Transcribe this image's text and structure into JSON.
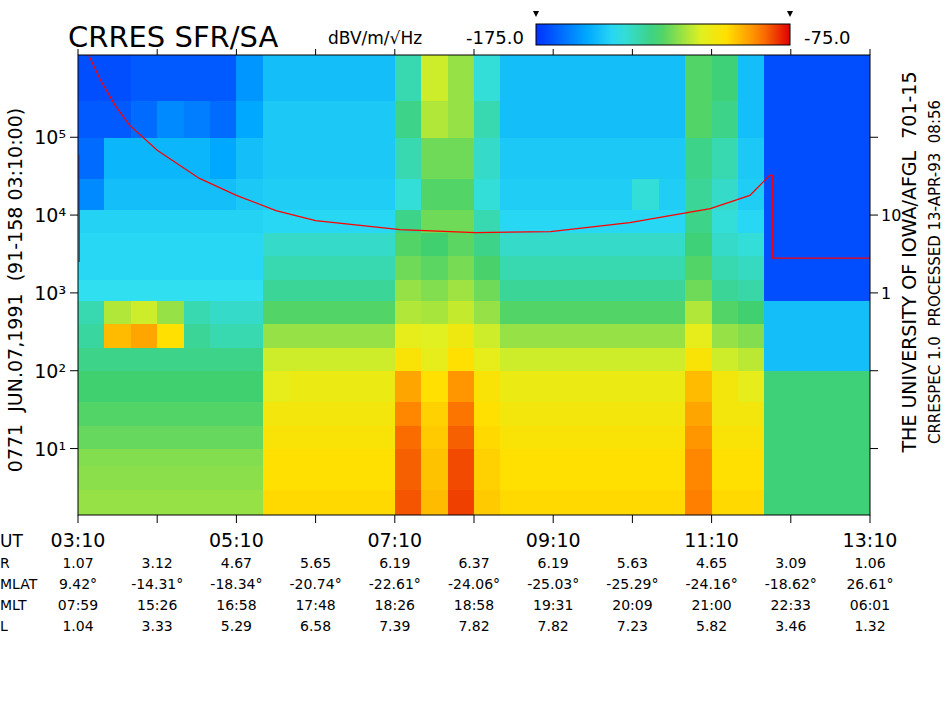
{
  "chart_data": {
    "type": "heatmap",
    "title": "CRRES SFR/SA",
    "left_label": "0771  JUN.07,1991  (91-158 03:10:00)",
    "right_labels": [
      "THE UNIVERSITY OF IOWA/AFGL  701-15",
      "CRRESPEC 1.0  PROCESSED 13-APR-93  08:56"
    ],
    "x_label": "UT",
    "log": "y",
    "xlim": [
      190,
      790
    ],
    "xticks": [
      {
        "value": 190,
        "label": "03:10"
      },
      {
        "value": 250,
        "label": null
      },
      {
        "value": 310,
        "label": "05:10"
      },
      {
        "value": 370,
        "label": null
      },
      {
        "value": 430,
        "label": "07:10"
      },
      {
        "value": 490,
        "label": null
      },
      {
        "value": 550,
        "label": "09:10"
      },
      {
        "value": 610,
        "label": null
      },
      {
        "value": 670,
        "label": "11:10"
      },
      {
        "value": 730,
        "label": null
      },
      {
        "value": 790,
        "label": "13:10"
      }
    ],
    "ylim": [
      1.4,
      1140000
    ],
    "yticks": [
      {
        "value": 10,
        "label": "10¹"
      },
      {
        "value": 100,
        "label": "10²"
      },
      {
        "value": 1000,
        "label": "10³"
      },
      {
        "value": 10000,
        "label": "10⁴"
      },
      {
        "value": 100000,
        "label": "10⁵"
      }
    ],
    "y2lim": [
      0.0014,
      1140
    ],
    "y2ticks": [
      {
        "value": 0.01,
        "label": null
      },
      {
        "value": 0.1,
        "label": null
      },
      1,
      10,
      {
        "value": 100,
        "label": null
      }
    ],
    "colorbar": {
      "label": "dBV/m/√Hz",
      "range": [
        -175,
        -75
      ],
      "ticks": [
        {
          "value": -175,
          "label": "-175.0"
        },
        {
          "value": -75,
          "label": "-75.0"
        }
      ]
    },
    "x_edges": [
      190,
      210,
      230,
      250,
      270,
      290,
      310,
      330,
      350,
      370,
      390,
      410,
      430,
      450,
      470,
      490,
      510,
      530,
      550,
      570,
      590,
      610,
      630,
      650,
      670,
      690,
      710,
      730,
      750,
      770,
      790
    ],
    "y_edges": [
      1.4,
      3,
      6,
      10,
      20,
      40,
      100,
      200,
      400,
      800,
      1500,
      3000,
      6000,
      12000,
      30000,
      100000,
      300000,
      1140000
    ],
    "cells": [
      [
        -118,
        -118,
        -118,
        -118,
        -118,
        -118,
        -118,
        -99,
        -99,
        -99,
        -99,
        -99,
        -83,
        -95,
        -81,
        -97,
        -99,
        -99,
        -99,
        -99,
        -99,
        -99,
        -99,
        -87,
        -99,
        -99,
        -128,
        -128,
        -128,
        -128
      ],
      [
        -119,
        -119,
        -119,
        -119,
        -119,
        -119,
        -119,
        -100,
        -100,
        -100,
        -100,
        -100,
        -84,
        -96,
        -82,
        -98,
        -100,
        -100,
        -100,
        -100,
        -100,
        -100,
        -100,
        -88,
        -100,
        -100,
        -128,
        -128,
        -128,
        -128
      ],
      [
        -120,
        -120,
        -120,
        -120,
        -120,
        -120,
        -120,
        -100,
        -100,
        -100,
        -100,
        -100,
        -84,
        -96,
        -82,
        -98,
        -100,
        -100,
        -100,
        -100,
        -100,
        -100,
        -100,
        -88,
        -100,
        -100,
        -128,
        -128,
        -128,
        -128
      ],
      [
        -123,
        -123,
        -123,
        -123,
        -123,
        -123,
        -123,
        -102,
        -102,
        -102,
        -102,
        -102,
        -85,
        -97,
        -84,
        -99,
        -102,
        -102,
        -102,
        -102,
        -102,
        -102,
        -102,
        -90,
        -102,
        -102,
        -128,
        -128,
        -128,
        -128
      ],
      [
        -125,
        -125,
        -125,
        -125,
        -125,
        -125,
        -125,
        -104,
        -104,
        -104,
        -104,
        -104,
        -88,
        -98,
        -86,
        -100,
        -104,
        -104,
        -104,
        -104,
        -104,
        -104,
        -104,
        -92,
        -104,
        -104,
        -128,
        -128,
        -128,
        -128
      ],
      [
        -127,
        -127,
        -127,
        -127,
        -127,
        -127,
        -127,
        -108,
        -106,
        -106,
        -106,
        -106,
        -92,
        -100,
        -90,
        -102,
        -106,
        -106,
        -106,
        -106,
        -106,
        -106,
        -106,
        -95,
        -104,
        -108,
        -128,
        -128,
        -128,
        -128
      ],
      [
        -130,
        -130,
        -130,
        -130,
        -130,
        -130,
        -130,
        -112,
        -112,
        -112,
        -112,
        -112,
        -102,
        -108,
        -100,
        -108,
        -112,
        -112,
        -112,
        -112,
        -112,
        -112,
        -112,
        -102,
        -112,
        -114,
        -150,
        -150,
        -150,
        -150
      ],
      [
        -133,
        -95,
        -92,
        -100,
        -132,
        -135,
        -135,
        -118,
        -118,
        -118,
        -118,
        -118,
        -108,
        -110,
        -105,
        -112,
        -118,
        -118,
        -118,
        -118,
        -118,
        -118,
        -118,
        -108,
        -118,
        -120,
        -150,
        -150,
        -150,
        -150
      ],
      [
        -135,
        -115,
        -112,
        -118,
        -135,
        -138,
        -138,
        -125,
        -125,
        -125,
        -125,
        -125,
        -115,
        -116,
        -113,
        -118,
        -125,
        -125,
        -125,
        -125,
        -125,
        -125,
        -125,
        -115,
        -125,
        -127,
        -150,
        -150,
        -150,
        -150
      ],
      [
        -143,
        -143,
        -143,
        -143,
        -143,
        -143,
        -143,
        -132,
        -132,
        -132,
        -132,
        -132,
        -118,
        -120,
        -117,
        -122,
        -132,
        -132,
        -132,
        -132,
        -132,
        -132,
        -132,
        -122,
        -132,
        -134,
        -170,
        -170,
        -170,
        -170
      ],
      [
        -145,
        -145,
        -145,
        -145,
        -145,
        -145,
        -145,
        -135,
        -135,
        -135,
        -135,
        -135,
        -122,
        -124,
        -121,
        -126,
        -135,
        -135,
        -135,
        -135,
        -135,
        -135,
        -135,
        -125,
        -135,
        -137,
        -170,
        -170,
        -170,
        -170
      ],
      [
        -145,
        -145,
        -145,
        -145,
        -145,
        -145,
        -145,
        -138,
        -138,
        -138,
        -138,
        -138,
        -125,
        -127,
        -124,
        -130,
        -138,
        -138,
        -138,
        -138,
        -138,
        -138,
        -138,
        -128,
        -138,
        -140,
        -170,
        -170,
        -170,
        -170
      ],
      [
        -146,
        -146,
        -146,
        -146,
        -146,
        -146,
        -146,
        -145,
        -145,
        -145,
        -145,
        -145,
        -130,
        -122,
        -122,
        -135,
        -145,
        -145,
        -145,
        -145,
        -145,
        -145,
        -145,
        -130,
        -140,
        -145,
        -170,
        -170,
        -170,
        -170
      ],
      [
        -160,
        -150,
        -150,
        -150,
        -150,
        -150,
        -148,
        -147,
        -147,
        -147,
        -147,
        -147,
        -140,
        -125,
        -125,
        -140,
        -147,
        -147,
        -147,
        -147,
        -147,
        -140,
        -147,
        -132,
        -138,
        -147,
        -170,
        -170,
        -170,
        -170
      ],
      [
        -165,
        -152,
        -152,
        -152,
        -152,
        -155,
        -150,
        -148,
        -148,
        -148,
        -148,
        -148,
        -135,
        -122,
        -122,
        -138,
        -148,
        -148,
        -148,
        -148,
        -148,
        -148,
        -148,
        -130,
        -135,
        -148,
        -170,
        -170,
        -170,
        -170
      ],
      [
        -168,
        -168,
        -165,
        -160,
        -162,
        -165,
        -155,
        -148,
        -148,
        -148,
        -148,
        -148,
        -130,
        -115,
        -118,
        -135,
        -150,
        -150,
        -150,
        -150,
        -150,
        -150,
        -150,
        -125,
        -130,
        -150,
        -170,
        -170,
        -170,
        -170
      ],
      [
        -170,
        -170,
        -168,
        -168,
        -168,
        -168,
        -158,
        -150,
        -150,
        -150,
        -150,
        -150,
        -135,
        -112,
        -118,
        -140,
        -150,
        -150,
        -150,
        -150,
        -150,
        -150,
        -150,
        -125,
        -128,
        -150,
        -170,
        -170,
        -170,
        -170
      ]
    ],
    "series": [
      {
        "type": "line",
        "color": "#ff0000",
        "x": [
          191,
          191,
          194,
          198,
          207,
          218,
          229,
          250,
          282,
          310,
          340,
          370,
          434,
          491,
          548,
          608,
          669,
          699,
          714,
          716,
          716,
          790
        ],
        "values": [
          2500,
          60000,
          null,
          1140000,
          543000,
          259000,
          143000,
          68000,
          29600,
          17900,
          11400,
          8500,
          6500,
          5950,
          6130,
          8000,
          12100,
          17900,
          32400,
          32400,
          2800,
          2800
        ]
      }
    ],
    "ephemeris": {
      "rows": [
        {
          "label": "R",
          "values": [
            1.07,
            3.12,
            4.67,
            5.65,
            6.19,
            6.37,
            6.19,
            5.63,
            4.65,
            3.09,
            1.06
          ]
        },
        {
          "label": "MLAT",
          "values": [
            "9.42°",
            "-14.31°",
            "-18.34°",
            "-20.74°",
            "-22.61°",
            "-24.06°",
            "-25.03°",
            "-25.29°",
            "-24.16°",
            "-18.62°",
            "26.61°"
          ]
        },
        {
          "label": "MLT",
          "values": [
            "07:59",
            "15:26",
            "16:58",
            "17:48",
            "18:26",
            "18:58",
            "19:31",
            "20:09",
            "21:00",
            "22:33",
            "06:01"
          ]
        },
        {
          "label": "L",
          "values": [
            1.04,
            3.33,
            5.29,
            6.58,
            7.39,
            7.82,
            7.82,
            7.23,
            5.82,
            3.46,
            1.32
          ]
        }
      ]
    }
  }
}
